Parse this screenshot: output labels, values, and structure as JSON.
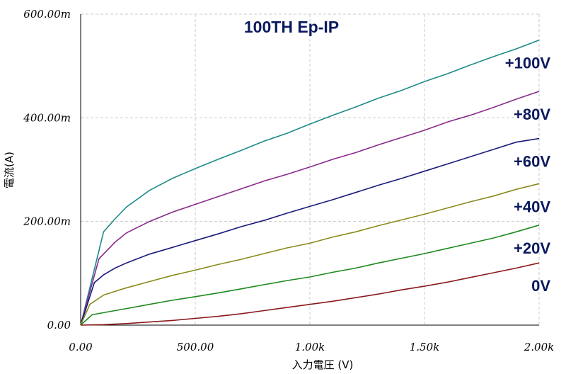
{
  "chart_data": {
    "type": "line",
    "title": "100TH Ep-IP",
    "xlabel": "入力電圧 (V)",
    "ylabel": "電流(A)",
    "xlim": [
      0,
      2000
    ],
    "ylim": [
      0,
      600
    ],
    "x_ticks": [
      {
        "value": 0,
        "label": "0.00"
      },
      {
        "value": 500,
        "label": "500.00"
      },
      {
        "value": 1000,
        "label": "1.00k"
      },
      {
        "value": 1500,
        "label": "1.50k"
      },
      {
        "value": 2000,
        "label": "2.00k"
      }
    ],
    "y_ticks": [
      {
        "value": 0,
        "label": "0.00"
      },
      {
        "value": 200,
        "label": "200.00m"
      },
      {
        "value": 400,
        "label": "400.00m"
      },
      {
        "value": 600,
        "label": "600.00m"
      }
    ],
    "grid": true,
    "series": [
      {
        "name": "+100V",
        "color": "#1e8a8a",
        "points": [
          [
            0,
            0
          ],
          [
            100,
            180
          ],
          [
            150,
            205
          ],
          [
            200,
            228
          ],
          [
            300,
            260
          ],
          [
            400,
            283
          ],
          [
            500,
            302
          ],
          [
            600,
            320
          ],
          [
            700,
            337
          ],
          [
            800,
            355
          ],
          [
            900,
            370
          ],
          [
            1000,
            388
          ],
          [
            1100,
            405
          ],
          [
            1200,
            421
          ],
          [
            1300,
            438
          ],
          [
            1400,
            453
          ],
          [
            1500,
            470
          ],
          [
            1600,
            485
          ],
          [
            1700,
            502
          ],
          [
            1800,
            518
          ],
          [
            1900,
            533
          ],
          [
            2000,
            550
          ]
        ]
      },
      {
        "name": "+80V",
        "color": "#8a2a8a",
        "points": [
          [
            0,
            0
          ],
          [
            80,
            128
          ],
          [
            150,
            160
          ],
          [
            200,
            178
          ],
          [
            300,
            200
          ],
          [
            400,
            218
          ],
          [
            500,
            233
          ],
          [
            600,
            248
          ],
          [
            700,
            263
          ],
          [
            800,
            278
          ],
          [
            900,
            291
          ],
          [
            1000,
            305
          ],
          [
            1100,
            320
          ],
          [
            1200,
            333
          ],
          [
            1300,
            348
          ],
          [
            1400,
            362
          ],
          [
            1500,
            376
          ],
          [
            1600,
            392
          ],
          [
            1700,
            405
          ],
          [
            1800,
            420
          ],
          [
            1900,
            436
          ],
          [
            2000,
            451
          ]
        ]
      },
      {
        "name": "+60V",
        "color": "#1a1a7a",
        "points": [
          [
            0,
            0
          ],
          [
            60,
            82
          ],
          [
            100,
            97
          ],
          [
            150,
            110
          ],
          [
            200,
            120
          ],
          [
            300,
            137
          ],
          [
            400,
            150
          ],
          [
            500,
            163
          ],
          [
            600,
            176
          ],
          [
            700,
            190
          ],
          [
            800,
            202
          ],
          [
            900,
            216
          ],
          [
            1000,
            229
          ],
          [
            1100,
            242
          ],
          [
            1200,
            256
          ],
          [
            1300,
            270
          ],
          [
            1400,
            283
          ],
          [
            1500,
            297
          ],
          [
            1600,
            311
          ],
          [
            1700,
            325
          ],
          [
            1800,
            339
          ],
          [
            1900,
            353
          ],
          [
            2000,
            360
          ]
        ]
      },
      {
        "name": "+40V",
        "color": "#8a8a1e",
        "points": [
          [
            0,
            0
          ],
          [
            40,
            40
          ],
          [
            100,
            58
          ],
          [
            150,
            65
          ],
          [
            200,
            72
          ],
          [
            300,
            84
          ],
          [
            400,
            96
          ],
          [
            500,
            106
          ],
          [
            600,
            117
          ],
          [
            700,
            127
          ],
          [
            800,
            138
          ],
          [
            900,
            149
          ],
          [
            1000,
            158
          ],
          [
            1100,
            170
          ],
          [
            1200,
            180
          ],
          [
            1300,
            192
          ],
          [
            1400,
            203
          ],
          [
            1500,
            214
          ],
          [
            1600,
            226
          ],
          [
            1700,
            238
          ],
          [
            1800,
            249
          ],
          [
            1900,
            262
          ],
          [
            2000,
            273
          ]
        ]
      },
      {
        "name": "+20V",
        "color": "#1e8a1e",
        "points": [
          [
            0,
            0
          ],
          [
            20,
            8
          ],
          [
            50,
            20
          ],
          [
            100,
            24
          ],
          [
            200,
            32
          ],
          [
            300,
            40
          ],
          [
            400,
            48
          ],
          [
            500,
            55
          ],
          [
            600,
            62
          ],
          [
            700,
            70
          ],
          [
            800,
            78
          ],
          [
            900,
            86
          ],
          [
            1000,
            93
          ],
          [
            1100,
            102
          ],
          [
            1200,
            110
          ],
          [
            1300,
            120
          ],
          [
            1400,
            129
          ],
          [
            1500,
            138
          ],
          [
            1600,
            148
          ],
          [
            1700,
            158
          ],
          [
            1800,
            168
          ],
          [
            1900,
            180
          ],
          [
            2000,
            193
          ]
        ]
      },
      {
        "name": "0V",
        "color": "#8a1a1a",
        "points": [
          [
            0,
            0
          ],
          [
            100,
            1
          ],
          [
            200,
            3
          ],
          [
            300,
            6
          ],
          [
            400,
            9
          ],
          [
            500,
            13
          ],
          [
            600,
            17
          ],
          [
            700,
            22
          ],
          [
            800,
            28
          ],
          [
            900,
            34
          ],
          [
            1000,
            40
          ],
          [
            1100,
            46
          ],
          [
            1200,
            53
          ],
          [
            1300,
            60
          ],
          [
            1400,
            68
          ],
          [
            1500,
            75
          ],
          [
            1600,
            83
          ],
          [
            1700,
            92
          ],
          [
            1800,
            101
          ],
          [
            1900,
            110
          ],
          [
            2000,
            120
          ]
        ]
      }
    ]
  }
}
